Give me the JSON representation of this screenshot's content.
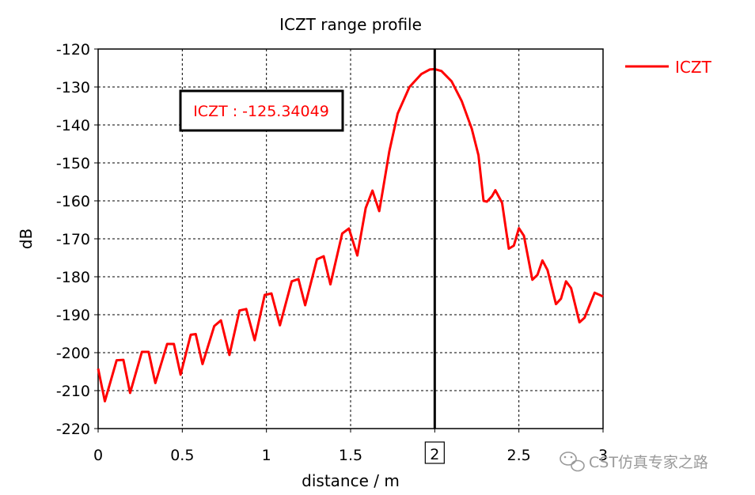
{
  "chart_data": {
    "type": "line",
    "title": "ICZT range profile",
    "xlabel": "distance / m",
    "ylabel": "dB",
    "xlim": [
      0,
      3
    ],
    "ylim": [
      -220,
      -120
    ],
    "x_ticks": [
      0,
      0.5,
      1,
      1.5,
      2,
      2.5,
      3
    ],
    "x_tick_labels": [
      "0",
      "0.5",
      "1",
      "1.5",
      "2",
      "2.5",
      "3"
    ],
    "y_ticks": [
      -120,
      -130,
      -140,
      -150,
      -160,
      -170,
      -180,
      -190,
      -200,
      -210,
      -220
    ],
    "y_tick_labels": [
      "-120",
      "-130",
      "-140",
      "-150",
      "-160",
      "-170",
      "-180",
      "-190",
      "-200",
      "-210",
      "-220"
    ],
    "grid": true,
    "legend_position": "top-right",
    "series": [
      {
        "name": "ICZT",
        "color": "#ff0000",
        "points": [
          [
            0.0,
            -204.2
          ],
          [
            0.04,
            -212.8
          ],
          [
            0.11,
            -202.0
          ],
          [
            0.15,
            -201.9
          ],
          [
            0.19,
            -210.6
          ],
          [
            0.26,
            -199.8
          ],
          [
            0.3,
            -199.8
          ],
          [
            0.34,
            -208.0
          ],
          [
            0.41,
            -197.7
          ],
          [
            0.45,
            -197.7
          ],
          [
            0.49,
            -205.8
          ],
          [
            0.55,
            -195.3
          ],
          [
            0.58,
            -195.1
          ],
          [
            0.62,
            -203.0
          ],
          [
            0.69,
            -193.0
          ],
          [
            0.73,
            -191.5
          ],
          [
            0.78,
            -200.6
          ],
          [
            0.84,
            -188.9
          ],
          [
            0.88,
            -188.5
          ],
          [
            0.93,
            -196.7
          ],
          [
            0.99,
            -184.8
          ],
          [
            1.03,
            -184.4
          ],
          [
            1.08,
            -192.8
          ],
          [
            1.15,
            -181.2
          ],
          [
            1.19,
            -180.6
          ],
          [
            1.23,
            -187.5
          ],
          [
            1.3,
            -175.4
          ],
          [
            1.34,
            -174.6
          ],
          [
            1.38,
            -182.0
          ],
          [
            1.45,
            -168.6
          ],
          [
            1.49,
            -167.3
          ],
          [
            1.54,
            -174.4
          ],
          [
            1.59,
            -161.9
          ],
          [
            1.63,
            -157.3
          ],
          [
            1.67,
            -162.7
          ],
          [
            1.69,
            -157.6
          ],
          [
            1.73,
            -147.0
          ],
          [
            1.78,
            -137.0
          ],
          [
            1.85,
            -130.0
          ],
          [
            1.92,
            -126.6
          ],
          [
            1.97,
            -125.4
          ],
          [
            2.0,
            -125.3
          ],
          [
            2.04,
            -125.8
          ],
          [
            2.1,
            -128.5
          ],
          [
            2.16,
            -133.7
          ],
          [
            2.22,
            -141.0
          ],
          [
            2.26,
            -148.0
          ],
          [
            2.29,
            -160.0
          ],
          [
            2.31,
            -160.2
          ],
          [
            2.34,
            -158.8
          ],
          [
            2.36,
            -157.2
          ],
          [
            2.4,
            -160.5
          ],
          [
            2.44,
            -172.6
          ],
          [
            2.47,
            -171.8
          ],
          [
            2.5,
            -167.2
          ],
          [
            2.53,
            -169.2
          ],
          [
            2.58,
            -180.8
          ],
          [
            2.61,
            -179.5
          ],
          [
            2.64,
            -175.7
          ],
          [
            2.67,
            -178.2
          ],
          [
            2.72,
            -187.2
          ],
          [
            2.75,
            -185.8
          ],
          [
            2.78,
            -181.2
          ],
          [
            2.81,
            -183.0
          ],
          [
            2.86,
            -192.0
          ],
          [
            2.89,
            -190.8
          ],
          [
            2.92,
            -187.5
          ],
          [
            2.95,
            -184.2
          ],
          [
            2.98,
            -184.8
          ],
          [
            3.0,
            -185.2
          ]
        ]
      }
    ],
    "cursor": {
      "x": 2,
      "x_label": "2"
    },
    "annotation": {
      "text": "ICZT : -125.34049"
    }
  },
  "legend": {
    "items": [
      {
        "label": "ICZT",
        "color": "#ff0000"
      }
    ]
  },
  "watermark": "CST仿真专家之路",
  "watermark_icon": "wechat-icon"
}
